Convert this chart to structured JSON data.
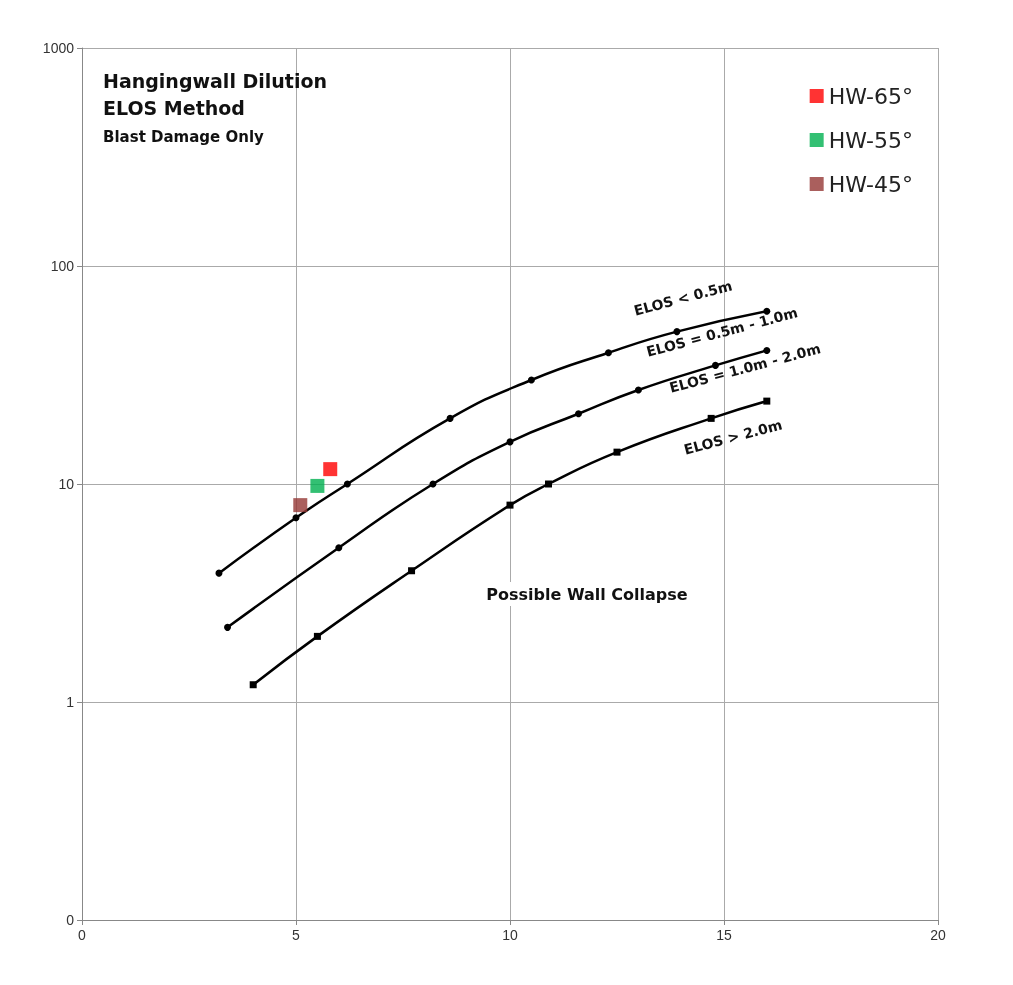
{
  "chart_data": {
    "type": "line",
    "title": "Hangingwall Dilution\nELOS Method",
    "subtitle": "Blast Damage Only",
    "xlim": [
      0,
      20
    ],
    "xticks": [
      0,
      5,
      10,
      15,
      20
    ],
    "ylim": [
      0.1,
      1000
    ],
    "yticks": [
      {
        "value": 0.1,
        "label": "0"
      },
      1,
      10,
      100,
      1000
    ],
    "log": "y",
    "grid": true,
    "legend": "top right",
    "marker": "circle",
    "line_style": "solid",
    "series": [
      {
        "color": "#000000",
        "x": [
          3.2,
          5.0,
          6.2,
          8.6,
          10.5,
          12.3,
          13.9,
          16.0
        ],
        "values": [
          3.9,
          7.0,
          10,
          20,
          30,
          40,
          50,
          62
        ]
      },
      {
        "color": "#000000",
        "x": [
          3.4,
          6.0,
          8.2,
          10.0,
          11.6,
          13.0,
          14.8,
          16.0
        ],
        "values": [
          2.2,
          5.1,
          10,
          15.6,
          21,
          27,
          35,
          41
        ]
      },
      {
        "color": "#000000",
        "marker": "square",
        "x": [
          4.0,
          5.5,
          7.7,
          10.0,
          10.9,
          12.5,
          14.7,
          16.0
        ],
        "values": [
          1.2,
          2.0,
          4.0,
          8.0,
          10,
          14,
          20,
          24
        ]
      },
      {
        "name": "HW-65°",
        "type": "scatter",
        "marker": "square",
        "color": "#ff0000",
        "x": [
          5.8
        ],
        "values": [
          11.7
        ]
      },
      {
        "name": "HW-55°",
        "type": "scatter",
        "marker": "square",
        "color": "#00b050",
        "x": [
          5.5
        ],
        "values": [
          9.8
        ]
      },
      {
        "name": "HW-45°",
        "type": "scatter",
        "marker": "square",
        "color": "#953735",
        "x": [
          5.1
        ],
        "values": [
          8.0
        ]
      }
    ],
    "annotations": [
      "ELOS < 0.5m",
      "ELOS = 0.5m - 1.0m",
      "ELOS = 1.0m - 2.0m",
      "ELOS > 2.0m",
      "Possible Wall Collapse"
    ]
  }
}
